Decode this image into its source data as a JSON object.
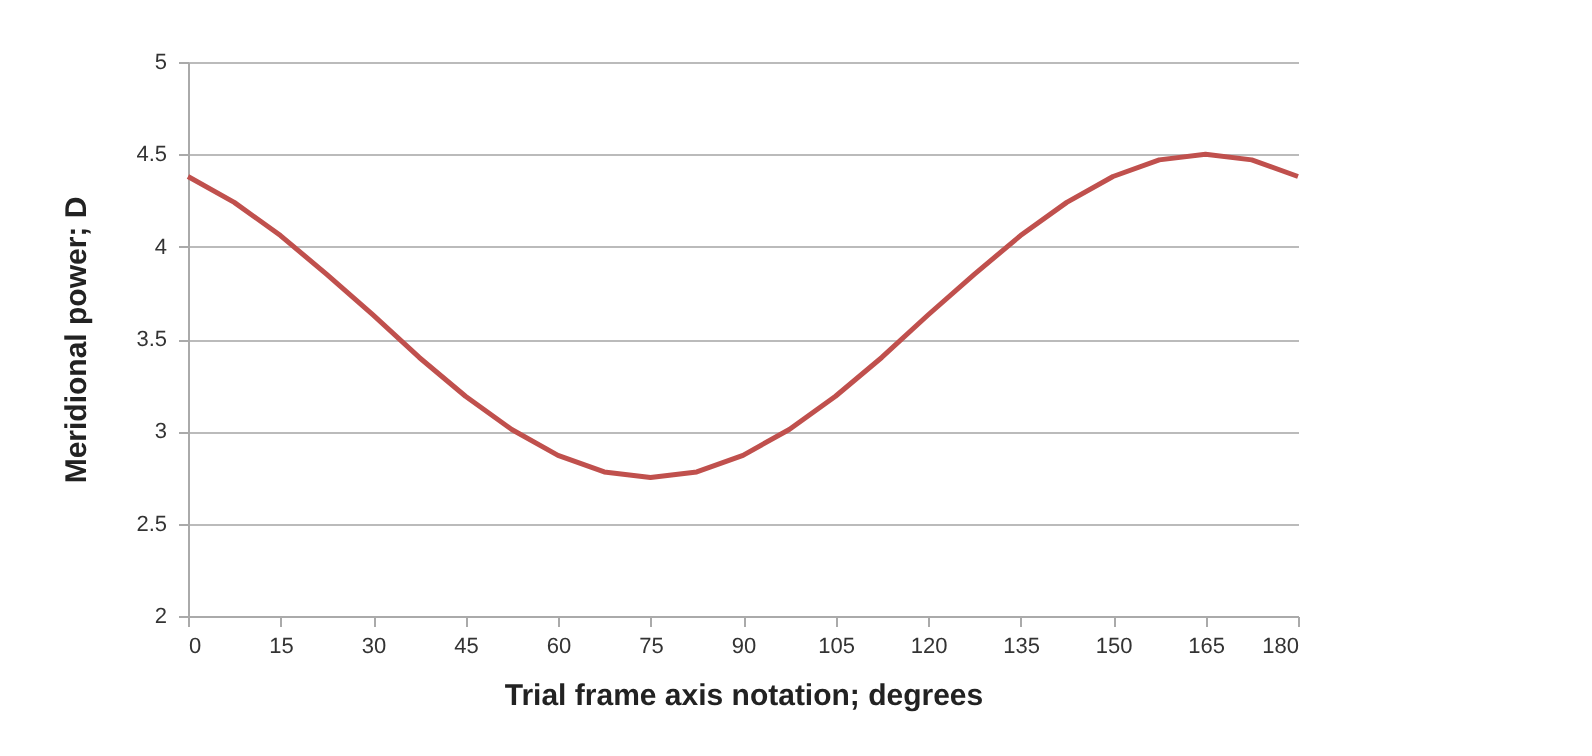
{
  "chart_data": {
    "type": "line",
    "xlabel": "Trial frame axis notation; degrees",
    "ylabel": "Meridional power; D",
    "x": [
      0,
      7.5,
      15,
      22.5,
      30,
      37.5,
      45,
      52.5,
      60,
      67.5,
      75,
      82.5,
      90,
      97.5,
      105,
      112.5,
      120,
      127.5,
      135,
      142.5,
      150,
      157.5,
      165,
      172.5,
      180
    ],
    "series": [
      {
        "color": "#c0504d",
        "values": [
          4.38,
          4.24,
          4.06,
          3.85,
          3.63,
          3.4,
          3.19,
          3.01,
          2.87,
          2.78,
          2.75,
          2.78,
          2.87,
          3.01,
          3.19,
          3.4,
          3.63,
          3.85,
          4.06,
          4.24,
          4.38,
          4.47,
          4.5,
          4.47,
          4.38
        ]
      }
    ],
    "xlim": [
      0,
      180
    ],
    "xticks": [
      0,
      15,
      30,
      45,
      60,
      75,
      90,
      105,
      120,
      135,
      150,
      165,
      180
    ],
    "ylim": [
      2,
      5
    ],
    "yticks": [
      2,
      2.5,
      3,
      3.5,
      4,
      4.5,
      5
    ],
    "grid": "y",
    "marker": "none",
    "line_style": "solid"
  }
}
